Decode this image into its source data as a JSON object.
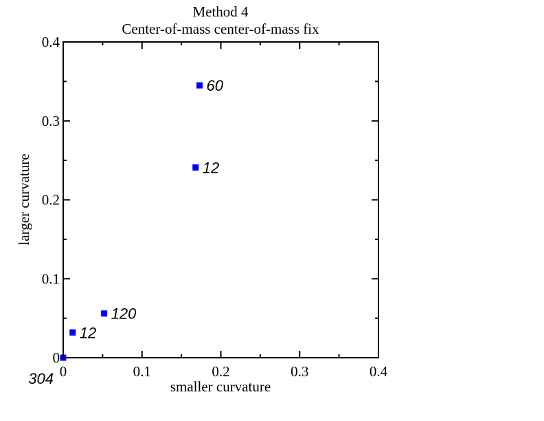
{
  "chart_data": {
    "type": "scatter",
    "title": "Method 4",
    "subtitle": "Center-of-mass center-of-mass fix",
    "xlabel": "smaller curvature",
    "ylabel": "larger curvature",
    "xlim": [
      0,
      0.4
    ],
    "ylim": [
      0,
      0.4
    ],
    "x_ticks": [
      0,
      0.1,
      0.2,
      0.3,
      0.4
    ],
    "y_ticks": [
      0,
      0.1,
      0.2,
      0.3,
      0.4
    ],
    "x_tick_labels": [
      "0",
      "0.1",
      "0.2",
      "0.3",
      "0.4"
    ],
    "y_tick_labels": [
      "0",
      "0.1",
      "0.2",
      "0.3",
      "0.4"
    ],
    "grid": false,
    "marker_color": "#0000ff",
    "points": [
      {
        "x": 0.0,
        "y": 0.0,
        "label": "304"
      },
      {
        "x": 0.012,
        "y": 0.032,
        "label": "12"
      },
      {
        "x": 0.052,
        "y": 0.056,
        "label": "120"
      },
      {
        "x": 0.168,
        "y": 0.241,
        "label": "12"
      },
      {
        "x": 0.173,
        "y": 0.345,
        "label": "60"
      }
    ]
  }
}
